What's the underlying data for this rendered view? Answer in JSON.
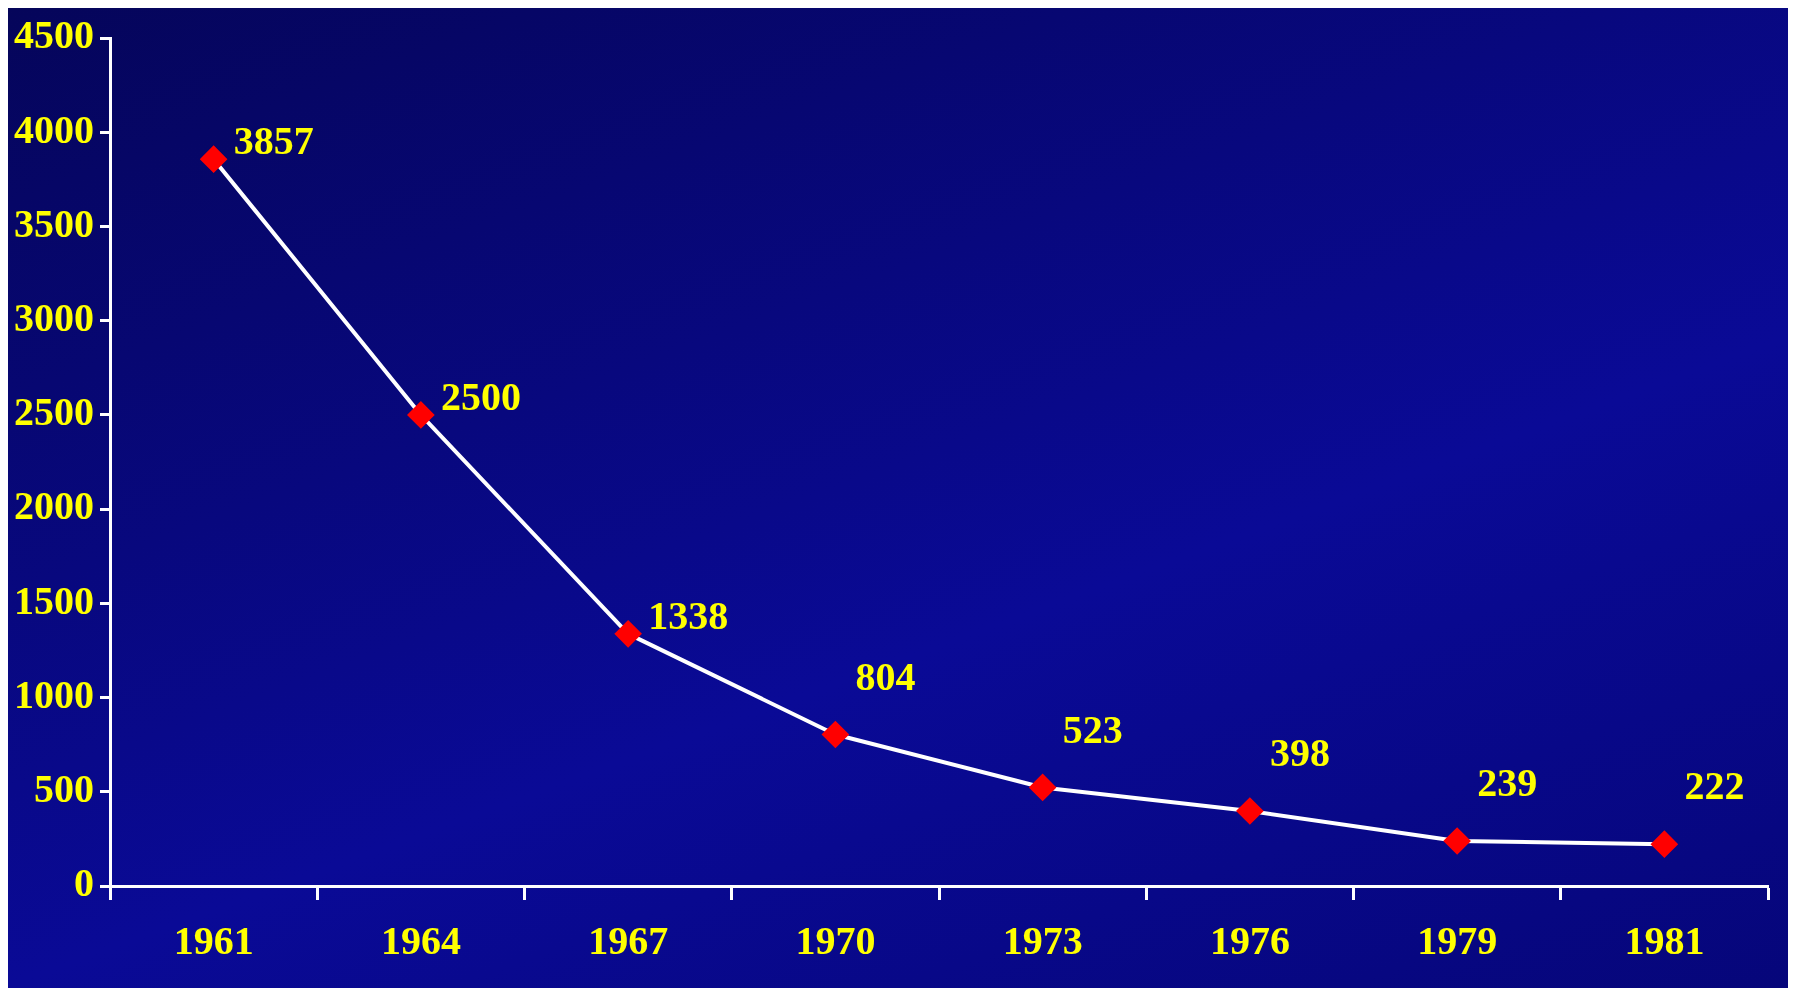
{
  "chart_data": {
    "type": "line",
    "categories": [
      "1961",
      "1964",
      "1967",
      "1970",
      "1973",
      "1976",
      "1979",
      "1981"
    ],
    "series": [
      {
        "color": "#ffffff",
        "colors": [
          "#ff0000",
          "#ff0000",
          "#ff0000",
          "#ff0000",
          "#ff0000",
          "#ff0000",
          "#ff0000",
          "#ff0000"
        ],
        "values": [
          3857,
          2500,
          1338,
          804,
          523,
          398,
          239,
          222
        ]
      }
    ],
    "marker": "diamond",
    "line_style": "solid",
    "ylim": [
      0,
      4500
    ],
    "yticks": [
      0,
      500,
      1000,
      1500,
      2000,
      2500,
      3000,
      3500,
      4000,
      4500
    ],
    "data_labels": true,
    "grid": false,
    "legend": false
  }
}
